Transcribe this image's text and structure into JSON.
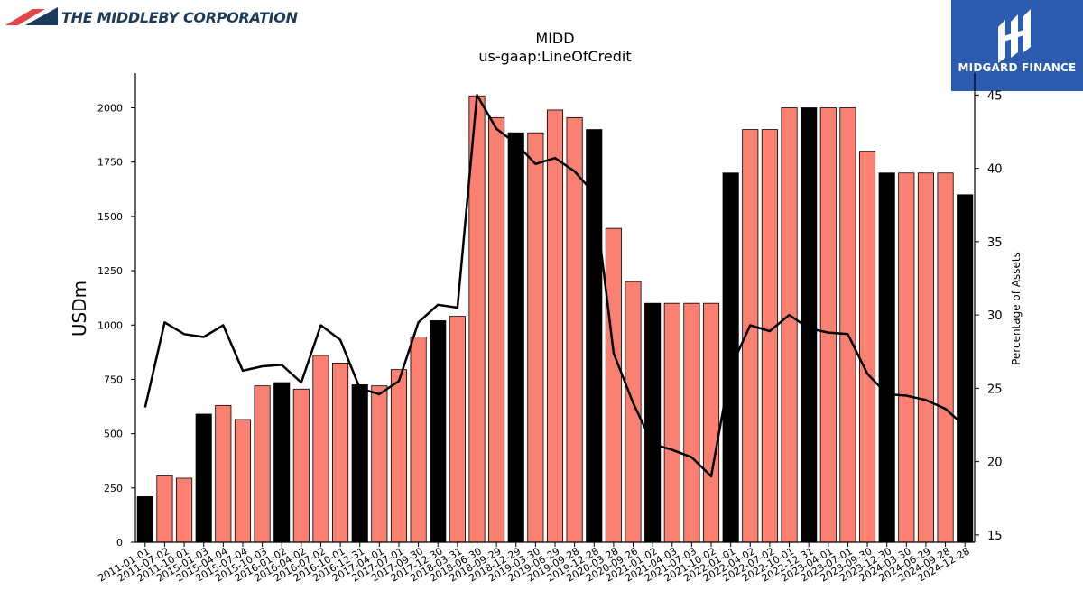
{
  "header": {
    "company_name": "THE MIDDLEBY CORPORATION",
    "brand_name": "MIDGARD FINANCE"
  },
  "colors": {
    "bar_primary": "#fa8072",
    "bar_highlight": "#000000",
    "line": "#000000",
    "brand_bg": "#2b5cb0",
    "company_text": "#1b3a5c"
  },
  "chart_data": {
    "type": "bar",
    "title": "MIDD",
    "subtitle": "us-gaap:LineOfCredit",
    "ylabel": "USDm",
    "y2label": "Percentage of Assets",
    "ylim": [
      0,
      2160
    ],
    "y2lim": [
      14.5,
      46.5
    ],
    "yticks": [
      0,
      250,
      500,
      750,
      1000,
      1250,
      1500,
      1750,
      2000
    ],
    "y2ticks": [
      15,
      20,
      25,
      30,
      35,
      40,
      45
    ],
    "categories": [
      "2011-01-01",
      "2011-07-02",
      "2011-10-01",
      "2015-01-03",
      "2015-04-04",
      "2015-07-04",
      "2015-10-03",
      "2016-01-02",
      "2016-04-02",
      "2016-07-02",
      "2016-10-01",
      "2016-12-31",
      "2017-04-01",
      "2017-07-01",
      "2017-09-30",
      "2017-12-30",
      "2018-03-31",
      "2018-06-30",
      "2018-09-29",
      "2018-12-29",
      "2019-03-30",
      "2019-06-29",
      "2019-09-28",
      "2019-12-28",
      "2020-03-28",
      "2020-09-26",
      "2021-01-02",
      "2021-04-03",
      "2021-07-03",
      "2021-10-02",
      "2022-01-01",
      "2022-04-02",
      "2022-07-02",
      "2022-10-01",
      "2022-12-31",
      "2023-04-01",
      "2023-07-01",
      "2023-09-30",
      "2023-12-30",
      "2024-03-30",
      "2024-06-29",
      "2024-09-28",
      "2024-12-28"
    ],
    "series": [
      {
        "kind": "bar",
        "values": [
          210,
          305,
          295,
          590,
          630,
          565,
          720,
          735,
          705,
          860,
          825,
          725,
          720,
          795,
          945,
          1020,
          1040,
          2055,
          1955,
          1885,
          1885,
          1990,
          1955,
          1900,
          1445,
          1200,
          1100,
          1100,
          1100,
          1100,
          1700,
          1900,
          1900,
          2000,
          2000,
          2000,
          2000,
          1800,
          1700,
          1700,
          1700,
          1700,
          1600
        ],
        "highlight": [
          true,
          false,
          false,
          true,
          false,
          false,
          false,
          true,
          false,
          false,
          false,
          true,
          false,
          false,
          false,
          true,
          false,
          false,
          false,
          true,
          false,
          false,
          false,
          true,
          false,
          false,
          true,
          false,
          false,
          false,
          true,
          false,
          false,
          false,
          true,
          false,
          false,
          false,
          true,
          false,
          false,
          false,
          true
        ]
      },
      {
        "kind": "line",
        "axis": "right",
        "values": [
          23.7,
          29.5,
          28.7,
          28.5,
          29.3,
          26.2,
          26.5,
          26.6,
          25.4,
          29.3,
          28.3,
          25.0,
          24.6,
          25.5,
          29.5,
          30.7,
          30.5,
          45.0,
          42.7,
          41.7,
          40.3,
          40.7,
          39.8,
          38.3,
          27.4,
          24.0,
          21.2,
          20.8,
          20.3,
          19.0,
          26.4,
          29.3,
          28.9,
          30.0,
          29.1,
          28.8,
          28.7,
          26.0,
          24.6,
          24.5,
          24.2,
          23.6,
          22.4
        ]
      }
    ],
    "grid": false,
    "legend": "none"
  }
}
